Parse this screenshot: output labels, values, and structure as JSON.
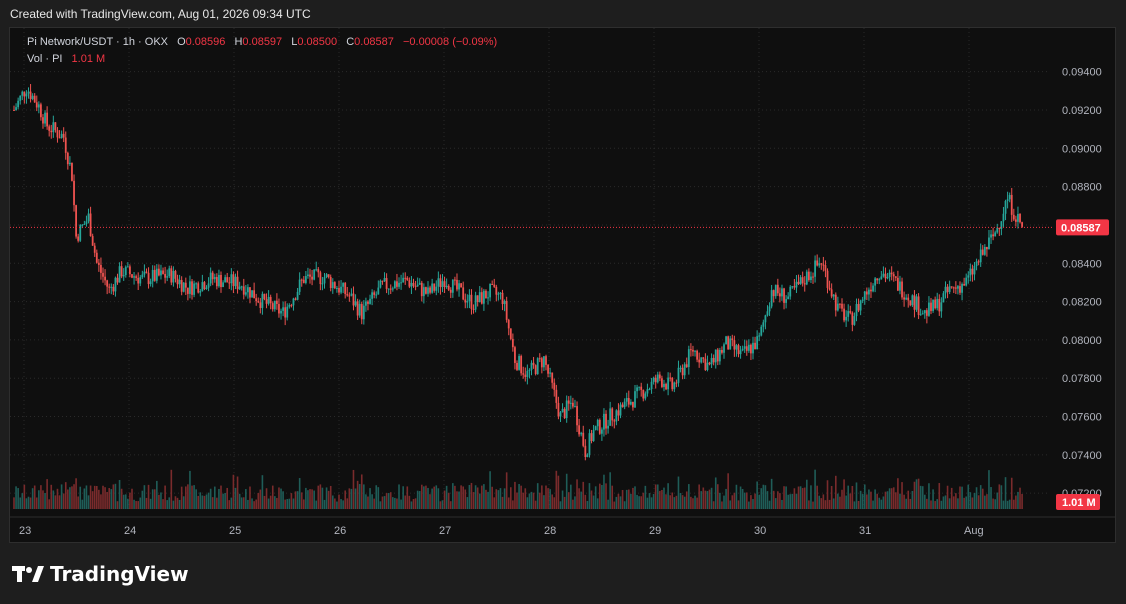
{
  "caption": "Created with TradingView.com, Aug 01, 2026 09:34 UTC",
  "legend": {
    "symbol": "Pi Network/USDT · 1h · OKX",
    "o_label": "O",
    "o": "0.08596",
    "h_label": "H",
    "h": "0.08597",
    "l_label": "L",
    "l": "0.08500",
    "c_label": "C",
    "c": "0.08587",
    "change": "−0.00008 (−0.09%)",
    "vol_label": "Vol · PI",
    "vol": "1.01 M"
  },
  "brand": {
    "name": "TradingView",
    "icon": "tradingview-logo-icon"
  },
  "colors": {
    "up": "#26a69a",
    "down": "#ef5350",
    "vol_up": "#1f5d58",
    "vol_down": "#7a2b2c",
    "background": "#0f0f0f",
    "grid": "#2a2a2a",
    "tag": "#f23645"
  },
  "chart_data": {
    "type": "candlestick",
    "symbol": "Pi Network/USDT",
    "interval": "1h",
    "exchange": "OKX",
    "y_ticks": [
      "0.09400",
      "0.09200",
      "0.09000",
      "0.08800",
      "0.08600",
      "0.08400",
      "0.08200",
      "0.08000",
      "0.07800",
      "0.07600",
      "0.07400",
      "0.07200"
    ],
    "ylim": [
      0.0718,
      0.0944
    ],
    "x_ticks": [
      "23",
      "24",
      "25",
      "26",
      "27",
      "28",
      "29",
      "30",
      "31",
      "Aug"
    ],
    "last_price": "0.08587",
    "last_volume": "1.01 M",
    "grid": true,
    "close_path": [
      [
        0,
        0.092
      ],
      [
        6,
        0.0932
      ],
      [
        12,
        0.0922
      ],
      [
        16,
        0.0912
      ],
      [
        24,
        0.0906
      ],
      [
        28,
        0.0886
      ],
      [
        30,
        0.0854
      ],
      [
        36,
        0.0864
      ],
      [
        40,
        0.084
      ],
      [
        46,
        0.0826
      ],
      [
        52,
        0.0836
      ],
      [
        62,
        0.0832
      ],
      [
        76,
        0.0834
      ],
      [
        84,
        0.0827
      ],
      [
        96,
        0.0832
      ],
      [
        110,
        0.0829
      ],
      [
        120,
        0.082
      ],
      [
        130,
        0.0814
      ],
      [
        140,
        0.0832
      ],
      [
        150,
        0.0833
      ],
      [
        162,
        0.0823
      ],
      [
        168,
        0.0814
      ],
      [
        178,
        0.0828
      ],
      [
        190,
        0.0831
      ],
      [
        200,
        0.0824
      ],
      [
        208,
        0.0832
      ],
      [
        214,
        0.0826
      ],
      [
        222,
        0.0819
      ],
      [
        230,
        0.0825
      ],
      [
        236,
        0.0822
      ],
      [
        242,
        0.079
      ],
      [
        248,
        0.0782
      ],
      [
        256,
        0.079
      ],
      [
        264,
        0.076
      ],
      [
        270,
        0.0768
      ],
      [
        276,
        0.0742
      ],
      [
        280,
        0.0752
      ],
      [
        288,
        0.076
      ],
      [
        300,
        0.077
      ],
      [
        312,
        0.078
      ],
      [
        318,
        0.0775
      ],
      [
        328,
        0.0795
      ],
      [
        336,
        0.0786
      ],
      [
        344,
        0.0798
      ],
      [
        352,
        0.0792
      ],
      [
        360,
        0.08
      ],
      [
        366,
        0.0826
      ],
      [
        374,
        0.0822
      ],
      [
        382,
        0.0832
      ],
      [
        390,
        0.0841
      ],
      [
        398,
        0.0816
      ],
      [
        404,
        0.081
      ],
      [
        410,
        0.0822
      ],
      [
        418,
        0.0836
      ],
      [
        426,
        0.083
      ],
      [
        434,
        0.0821
      ],
      [
        440,
        0.0814
      ],
      [
        446,
        0.0818
      ],
      [
        452,
        0.0826
      ],
      [
        460,
        0.083
      ],
      [
        468,
        0.0845
      ],
      [
        474,
        0.0856
      ],
      [
        480,
        0.0874
      ],
      [
        484,
        0.0865
      ],
      [
        487,
        0.0859
      ]
    ]
  }
}
